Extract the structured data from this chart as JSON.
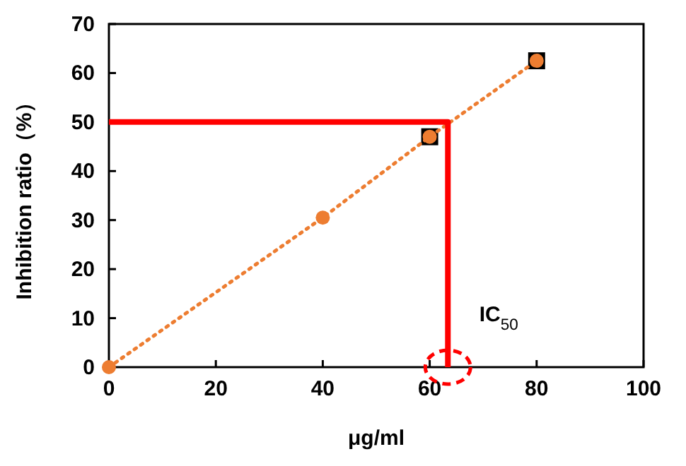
{
  "chart_data": {
    "type": "line",
    "xlabel": "μg/ml",
    "ylabel": "Inhibition ratio（%）",
    "xlim": [
      0,
      100
    ],
    "ylim": [
      0,
      70
    ],
    "xticks": [
      0,
      20,
      40,
      60,
      80,
      100
    ],
    "yticks": [
      0,
      10,
      20,
      30,
      40,
      50,
      60,
      70
    ],
    "grid": false,
    "series": [
      {
        "type": "scatter",
        "marker": "square",
        "color": "#000000",
        "x": [
          60,
          80
        ],
        "values": [
          47,
          62.5
        ]
      },
      {
        "marker": "circle",
        "line_style": "dotted",
        "color": "#ed7d31",
        "x": [
          0,
          40,
          60,
          80
        ],
        "values": [
          0,
          30.5,
          47,
          62.5
        ]
      },
      {
        "marker": "none",
        "line_style": "solid",
        "color": "#ff0000",
        "x": [
          0,
          63.4,
          63.4
        ],
        "values": [
          50,
          50,
          0
        ]
      }
    ],
    "annotations": [
      "IC$_{50}$"
    ]
  }
}
